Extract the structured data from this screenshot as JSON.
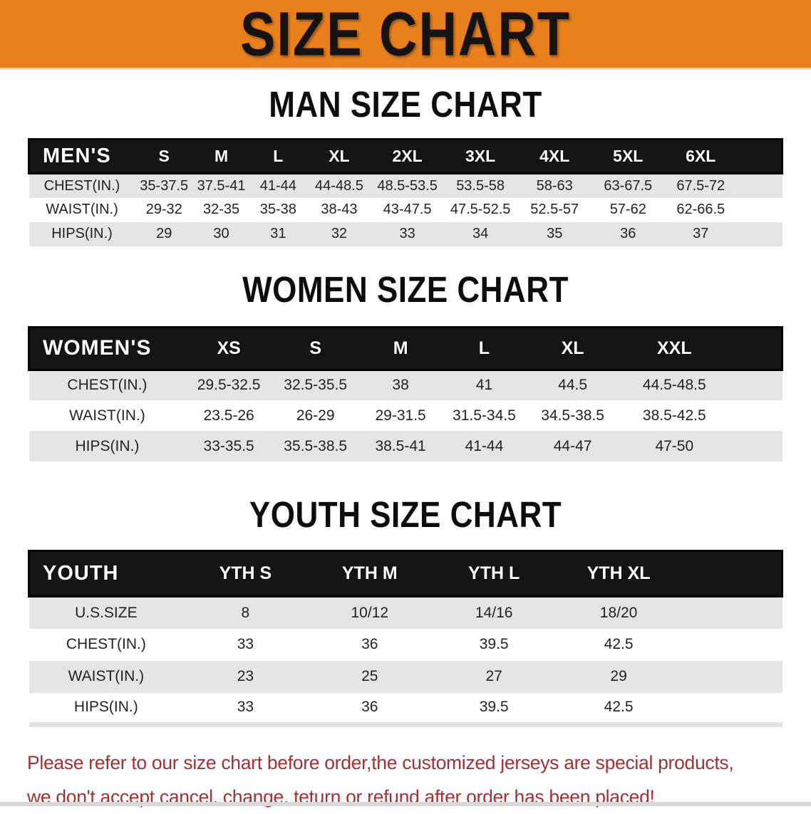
{
  "banner": {
    "title": "SIZE CHART",
    "bg_color": "#E8811C",
    "text_color": "#141414"
  },
  "sections": [
    {
      "heading": "MAN SIZE CHART",
      "table": {
        "label": "MEN'S",
        "columns": [
          "S",
          "M",
          "L",
          "XL",
          "2XL",
          "3XL",
          "4XL",
          "5XL",
          "6XL"
        ],
        "rows": [
          {
            "label": "CHEST(IN.)",
            "values": [
              "35-37.5",
              "37.5-41",
              "41-44",
              "44-48.5",
              "48.5-53.5",
              "53.5-58",
              "58-63",
              "63-67.5",
              "67.5-72"
            ]
          },
          {
            "label": "WAIST(IN.)",
            "values": [
              "29-32",
              "32-35",
              "35-38",
              "38-43",
              "43-47.5",
              "47.5-52.5",
              "52.5-57",
              "57-62",
              "62-66.5"
            ]
          },
          {
            "label": "HIPS(IN.)",
            "values": [
              "29",
              "30",
              "31",
              "32",
              "33",
              "34",
              "35",
              "36",
              "37"
            ]
          }
        ]
      }
    },
    {
      "heading": "WOMEN SIZE CHART",
      "table": {
        "label": "WOMEN'S",
        "columns": [
          "XS",
          "S",
          "M",
          "L",
          "XL",
          "XXL"
        ],
        "rows": [
          {
            "label": "CHEST(IN.)",
            "values": [
              "29.5-32.5",
              "32.5-35.5",
              "38",
              "41",
              "44.5",
              "44.5-48.5"
            ]
          },
          {
            "label": "WAIST(IN.)",
            "values": [
              "23.5-26",
              "26-29",
              "29-31.5",
              "31.5-34.5",
              "34.5-38.5",
              "38.5-42.5"
            ]
          },
          {
            "label": "HIPS(IN.)",
            "values": [
              "33-35.5",
              "35.5-38.5",
              "38.5-41",
              "41-44",
              "44-47",
              "47-50"
            ]
          }
        ]
      }
    },
    {
      "heading": "YOUTH SIZE CHART",
      "table": {
        "label": "YOUTH",
        "columns": [
          "YTH S",
          "YTH M",
          "YTH L",
          "YTH XL"
        ],
        "rows": [
          {
            "label": "U.S.SIZE",
            "values": [
              "8",
              "10/12",
              "14/16",
              "18/20"
            ]
          },
          {
            "label": "CHEST(IN.)",
            "values": [
              "33",
              "36",
              "39.5",
              "42.5"
            ]
          },
          {
            "label": "WAIST(IN.)",
            "values": [
              "23",
              "25",
              "27",
              "29"
            ]
          },
          {
            "label": "HIPS(IN.)",
            "values": [
              "33",
              "36",
              "39.5",
              "42.5"
            ]
          }
        ]
      }
    }
  ],
  "disclaimer": {
    "line1": "Please refer to our size chart before order,the customized jerseys are special products,",
    "line2": "we don't accept cancel, change, teturn or refund after order has been placed!",
    "text_color": "#A33131"
  },
  "colors": {
    "banner_orange": "#E8811C",
    "header_black": "#151515",
    "stripe_gray": "#E5E5E7",
    "disclaimer_red": "#A33131"
  }
}
